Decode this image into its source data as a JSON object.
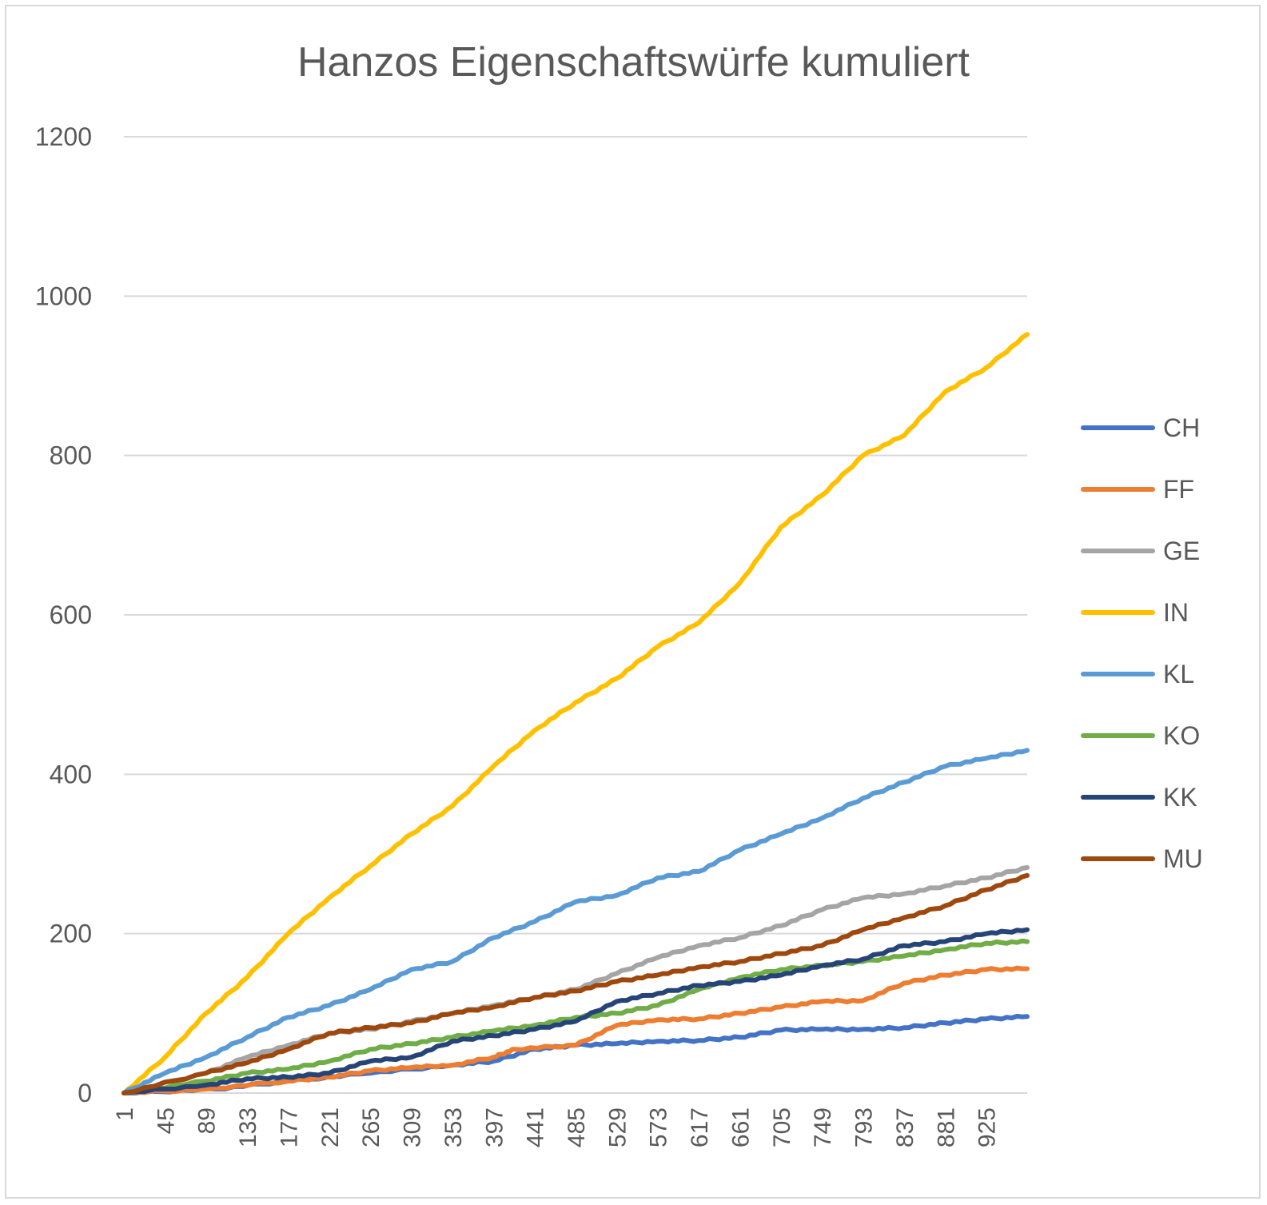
{
  "chart_data": {
    "type": "line",
    "title": "Hanzos Eigenschaftswürfe kumuliert",
    "xlabel": "",
    "ylabel": "",
    "ylim": [
      0,
      1200
    ],
    "xlim": [
      1,
      969
    ],
    "y_ticks": [
      "0",
      "200",
      "400",
      "600",
      "800",
      "1000",
      "1200"
    ],
    "x_ticks": [
      "1",
      "45",
      "89",
      "133",
      "177",
      "221",
      "265",
      "309",
      "353",
      "397",
      "441",
      "485",
      "529",
      "573",
      "617",
      "661",
      "705",
      "749",
      "793",
      "837",
      "881",
      "925"
    ],
    "grid": true,
    "legend_position": "right",
    "series": [
      {
        "name": "CH",
        "color": "#4472C4",
        "points": [
          [
            1,
            0
          ],
          [
            100,
            5
          ],
          [
            177,
            15
          ],
          [
            265,
            25
          ],
          [
            353,
            35
          ],
          [
            397,
            40
          ],
          [
            441,
            55
          ],
          [
            485,
            60
          ],
          [
            529,
            62
          ],
          [
            573,
            65
          ],
          [
            617,
            66
          ],
          [
            661,
            70
          ],
          [
            705,
            79
          ],
          [
            749,
            80
          ],
          [
            793,
            80
          ],
          [
            837,
            82
          ],
          [
            881,
            88
          ],
          [
            925,
            93
          ],
          [
            969,
            96
          ]
        ]
      },
      {
        "name": "FF",
        "color": "#ED7D31",
        "points": [
          [
            1,
            0
          ],
          [
            89,
            5
          ],
          [
            177,
            15
          ],
          [
            221,
            20
          ],
          [
            265,
            28
          ],
          [
            309,
            32
          ],
          [
            353,
            35
          ],
          [
            397,
            45
          ],
          [
            420,
            55
          ],
          [
            485,
            60
          ],
          [
            529,
            85
          ],
          [
            573,
            92
          ],
          [
            617,
            93
          ],
          [
            661,
            100
          ],
          [
            705,
            108
          ],
          [
            749,
            115
          ],
          [
            793,
            116
          ],
          [
            837,
            138
          ],
          [
            881,
            148
          ],
          [
            925,
            155
          ],
          [
            969,
            156
          ]
        ]
      },
      {
        "name": "GE",
        "color": "#A5A5A5",
        "points": [
          [
            1,
            0
          ],
          [
            89,
            25
          ],
          [
            133,
            45
          ],
          [
            177,
            60
          ],
          [
            221,
            75
          ],
          [
            265,
            80
          ],
          [
            309,
            90
          ],
          [
            353,
            100
          ],
          [
            397,
            110
          ],
          [
            441,
            120
          ],
          [
            485,
            130
          ],
          [
            529,
            150
          ],
          [
            573,
            170
          ],
          [
            617,
            185
          ],
          [
            661,
            195
          ],
          [
            705,
            210
          ],
          [
            749,
            230
          ],
          [
            793,
            245
          ],
          [
            837,
            250
          ],
          [
            881,
            260
          ],
          [
            925,
            270
          ],
          [
            969,
            283
          ]
        ]
      },
      {
        "name": "IN",
        "color": "#FFC000",
        "points": [
          [
            1,
            0
          ],
          [
            45,
            45
          ],
          [
            89,
            100
          ],
          [
            133,
            145
          ],
          [
            177,
            200
          ],
          [
            221,
            245
          ],
          [
            265,
            285
          ],
          [
            309,
            325
          ],
          [
            353,
            360
          ],
          [
            397,
            410
          ],
          [
            441,
            455
          ],
          [
            485,
            490
          ],
          [
            529,
            520
          ],
          [
            573,
            560
          ],
          [
            617,
            590
          ],
          [
            661,
            640
          ],
          [
            705,
            710
          ],
          [
            749,
            750
          ],
          [
            793,
            800
          ],
          [
            837,
            825
          ],
          [
            881,
            880
          ],
          [
            925,
            910
          ],
          [
            969,
            952
          ]
        ]
      },
      {
        "name": "KL",
        "color": "#5B9BD5",
        "points": [
          [
            1,
            0
          ],
          [
            45,
            25
          ],
          [
            89,
            45
          ],
          [
            133,
            70
          ],
          [
            177,
            95
          ],
          [
            221,
            110
          ],
          [
            265,
            130
          ],
          [
            309,
            155
          ],
          [
            353,
            165
          ],
          [
            397,
            195
          ],
          [
            441,
            215
          ],
          [
            485,
            240
          ],
          [
            529,
            248
          ],
          [
            573,
            270
          ],
          [
            617,
            278
          ],
          [
            661,
            305
          ],
          [
            705,
            325
          ],
          [
            749,
            345
          ],
          [
            793,
            370
          ],
          [
            837,
            390
          ],
          [
            881,
            410
          ],
          [
            925,
            420
          ],
          [
            969,
            430
          ]
        ]
      },
      {
        "name": "KO",
        "color": "#70AD47",
        "points": [
          [
            1,
            0
          ],
          [
            89,
            15
          ],
          [
            133,
            25
          ],
          [
            177,
            30
          ],
          [
            221,
            40
          ],
          [
            265,
            55
          ],
          [
            309,
            62
          ],
          [
            353,
            70
          ],
          [
            397,
            78
          ],
          [
            441,
            85
          ],
          [
            485,
            95
          ],
          [
            529,
            100
          ],
          [
            573,
            110
          ],
          [
            617,
            130
          ],
          [
            661,
            145
          ],
          [
            705,
            155
          ],
          [
            749,
            160
          ],
          [
            793,
            165
          ],
          [
            837,
            172
          ],
          [
            881,
            180
          ],
          [
            925,
            188
          ],
          [
            969,
            190
          ]
        ]
      },
      {
        "name": "KK",
        "color": "#264478",
        "points": [
          [
            1,
            0
          ],
          [
            89,
            10
          ],
          [
            133,
            18
          ],
          [
            177,
            20
          ],
          [
            221,
            25
          ],
          [
            265,
            40
          ],
          [
            309,
            45
          ],
          [
            353,
            65
          ],
          [
            397,
            72
          ],
          [
            441,
            80
          ],
          [
            485,
            90
          ],
          [
            529,
            115
          ],
          [
            573,
            125
          ],
          [
            617,
            135
          ],
          [
            661,
            140
          ],
          [
            705,
            148
          ],
          [
            749,
            160
          ],
          [
            793,
            168
          ],
          [
            837,
            185
          ],
          [
            881,
            190
          ],
          [
            925,
            200
          ],
          [
            969,
            205
          ]
        ]
      },
      {
        "name": "MU",
        "color": "#9E480E",
        "points": [
          [
            1,
            0
          ],
          [
            89,
            25
          ],
          [
            133,
            38
          ],
          [
            177,
            55
          ],
          [
            221,
            75
          ],
          [
            265,
            82
          ],
          [
            309,
            88
          ],
          [
            353,
            100
          ],
          [
            397,
            108
          ],
          [
            441,
            120
          ],
          [
            485,
            128
          ],
          [
            529,
            140
          ],
          [
            573,
            148
          ],
          [
            617,
            158
          ],
          [
            661,
            165
          ],
          [
            705,
            175
          ],
          [
            749,
            185
          ],
          [
            793,
            205
          ],
          [
            837,
            220
          ],
          [
            881,
            235
          ],
          [
            925,
            255
          ],
          [
            969,
            273
          ]
        ]
      }
    ]
  }
}
